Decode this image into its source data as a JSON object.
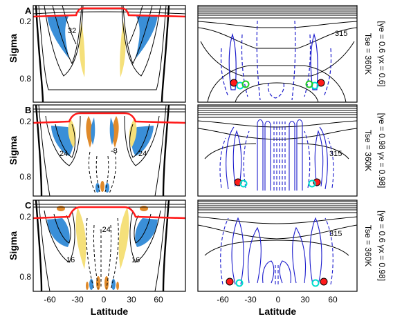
{
  "figure": {
    "x_axis_label": "Latitude",
    "y_axis_label": "Sigma",
    "x_ticks": [
      "-60",
      "-30",
      "0",
      "30",
      "60"
    ],
    "y_ticks": [
      "0.2",
      "0.8"
    ],
    "colors": {
      "blue_fill": "#3a8fd8",
      "yellow_fill": "#f5e07a",
      "orange_fill": "#e08a2a",
      "red_line": "#ff1a1a",
      "blue_contour": "#1a1acc",
      "black_contour": "#000000"
    },
    "rows": [
      {
        "letter": "A",
        "gamma_label": "[γe = 0.6 γx = 0.6]",
        "ts_label": "Tse = 360K",
        "left_contour_label": "32",
        "right_contour_label": "315"
      },
      {
        "letter": "B",
        "gamma_label": "[γe = 0.98 γx = 0.98]",
        "ts_label": "Tse = 360K",
        "left_contour_labels": [
          "24",
          "-8",
          "24"
        ],
        "right_contour_label": "315"
      },
      {
        "letter": "C",
        "gamma_label": "[γe = 0.6 γx = 0.98]",
        "ts_label": "Tse = 360K",
        "left_contour_labels": [
          "-24",
          "16",
          "16"
        ],
        "right_contour_label": "315"
      }
    ]
  }
}
